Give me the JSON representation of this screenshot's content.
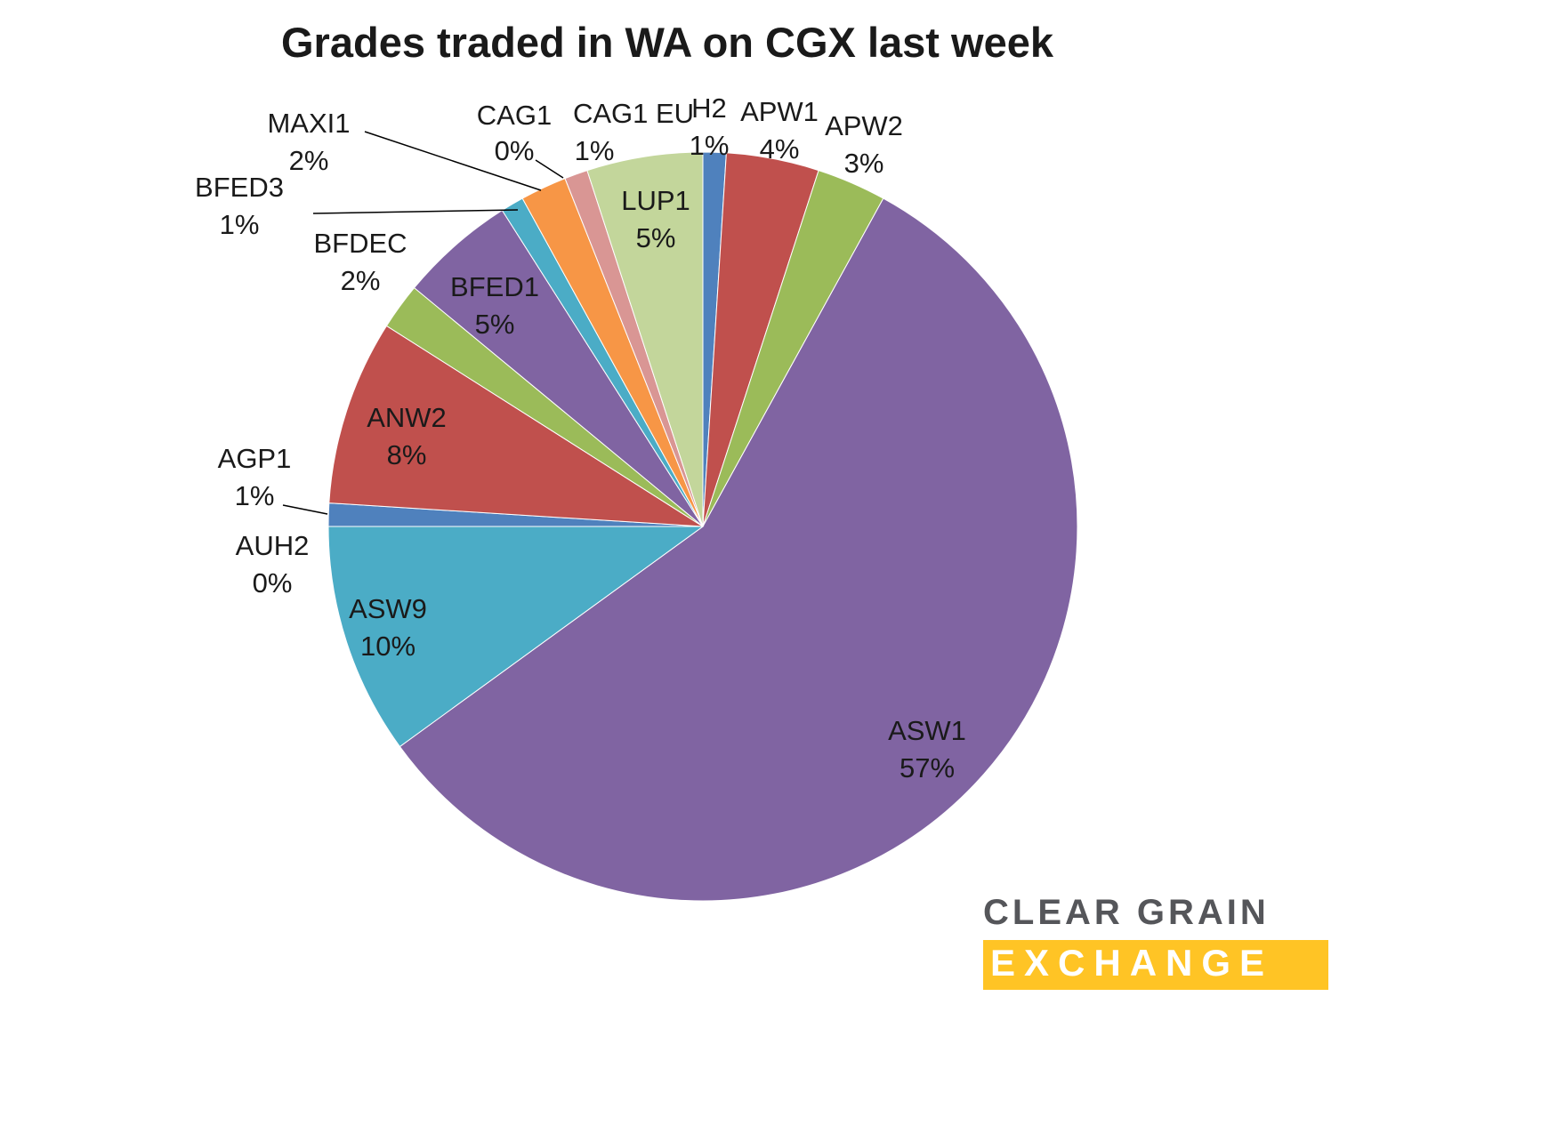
{
  "chart_data": {
    "type": "pie",
    "title": "Grades traded in WA on CGX last week",
    "start_angle_deg": 0,
    "direction": "clockwise",
    "legend_position": "none",
    "slices": [
      {
        "label": "H2",
        "value": 1,
        "pct_label": "1%",
        "color": "#4F81BD"
      },
      {
        "label": "APW1",
        "value": 4,
        "pct_label": "4%",
        "color": "#C0504D"
      },
      {
        "label": "APW2",
        "value": 3,
        "pct_label": "3%",
        "color": "#9BBB59"
      },
      {
        "label": "ASW1",
        "value": 57,
        "pct_label": "57%",
        "color": "#8064A2"
      },
      {
        "label": "ASW9",
        "value": 10,
        "pct_label": "10%",
        "color": "#4BACC6"
      },
      {
        "label": "AUH2",
        "value": 0,
        "pct_label": "0%",
        "color": "#F79646"
      },
      {
        "label": "AGP1",
        "value": 1,
        "pct_label": "1%",
        "color": "#4F81BD"
      },
      {
        "label": "ANW2",
        "value": 8,
        "pct_label": "8%",
        "color": "#C0504D"
      },
      {
        "label": "BFDEC",
        "value": 2,
        "pct_label": "2%",
        "color": "#9BBB59"
      },
      {
        "label": "BFED1",
        "value": 5,
        "pct_label": "5%",
        "color": "#8064A2"
      },
      {
        "label": "BFED3",
        "value": 1,
        "pct_label": "1%",
        "color": "#4BACC6"
      },
      {
        "label": "MAXI1",
        "value": 2,
        "pct_label": "2%",
        "color": "#F79646"
      },
      {
        "label": "CAG1",
        "value": 0,
        "pct_label": "0%",
        "color": "#95B3D7"
      },
      {
        "label": "CAG1 EU",
        "value": 1,
        "pct_label": "1%",
        "color": "#D99694"
      },
      {
        "label": "LUP1",
        "value": 5,
        "pct_label": "5%",
        "color": "#C3D69B"
      }
    ]
  },
  "logo": {
    "line1": "CLEAR GRAIN",
    "line2": "EXCHANGE",
    "bar_color": "#FFC425",
    "text_color": "#55565A"
  }
}
